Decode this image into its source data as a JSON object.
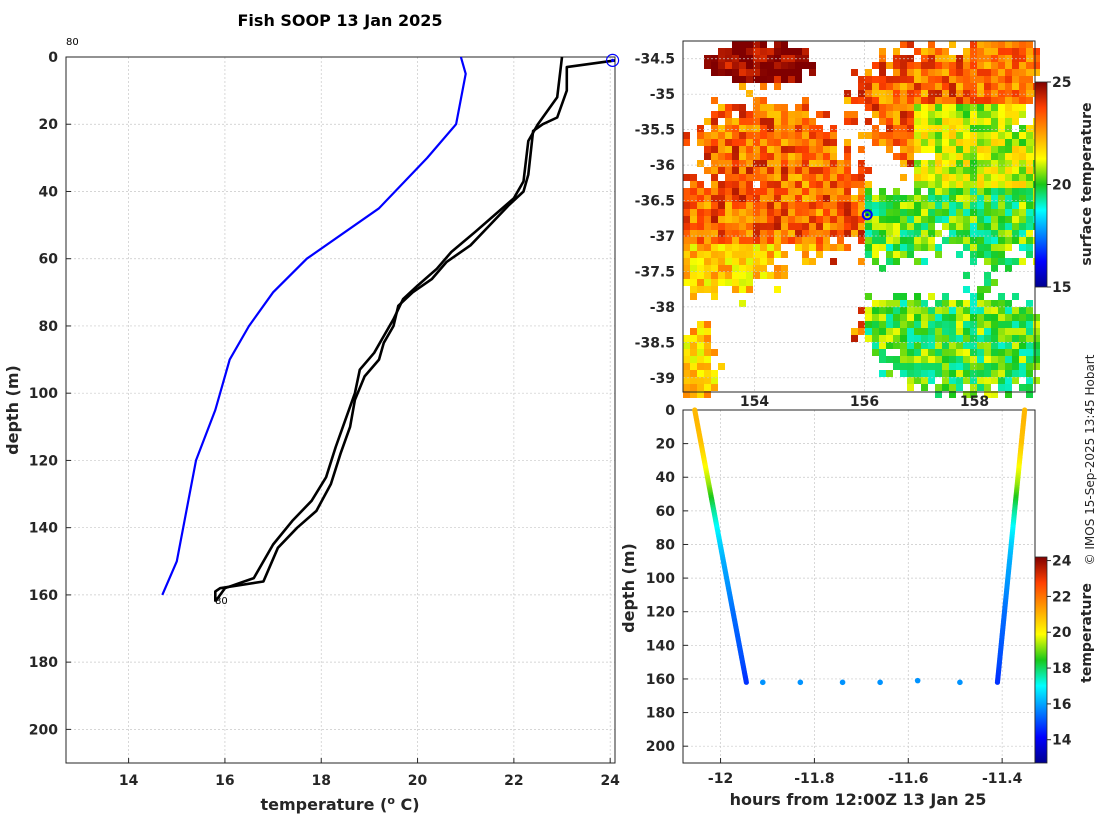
{
  "title": "Fish SOOP 13 Jan 2025",
  "credit": "© IMOS 15-Sep-2025 13:45 Hobart",
  "colors": {
    "obs": "#000000",
    "clim": "#0000ff",
    "marker": "#0000ff"
  },
  "chart_data": [
    {
      "type": "line",
      "panel": "profile",
      "xlabel": "temperature (o C)",
      "xlabel_main": "temperature (",
      "xlabel_sup": "o",
      "xlabel_end": " C)",
      "ylabel": "depth (m)",
      "xlim": [
        12.7,
        24.1
      ],
      "ylim": [
        210,
        0
      ],
      "xticks": [
        "14",
        "16",
        "18",
        "20",
        "22",
        "24"
      ],
      "yticks": [
        "0",
        "20",
        "40",
        "60",
        "80",
        "100",
        "120",
        "140",
        "160",
        "180",
        "200"
      ],
      "grid": true,
      "annotation_top": "80",
      "annotation_bottom": "80",
      "series": [
        {
          "role": "climatology",
          "color": "#0000ff",
          "x": [
            20.9,
            21.0,
            20.8,
            20.2,
            19.2,
            17.7,
            17.0,
            16.5,
            16.1,
            15.8,
            15.4,
            15.0,
            14.7
          ],
          "y": [
            0,
            5,
            20,
            30,
            45,
            60,
            70,
            80,
            90,
            105,
            120,
            150,
            160
          ]
        },
        {
          "role": "observed down",
          "color": "#000000",
          "x": [
            24.1,
            23.1,
            23.1,
            22.9,
            22.6,
            22.4,
            22.3,
            22.2,
            21.9,
            21.5,
            21.1,
            20.6,
            20.3,
            19.9,
            19.6,
            19.5,
            19.3,
            19.2,
            18.9,
            18.7,
            18.6,
            18.4,
            18.2,
            17.9,
            17.5,
            17.1,
            16.8,
            15.9,
            15.8,
            15.8
          ],
          "y": [
            1,
            3,
            10,
            18,
            20,
            22,
            35,
            40,
            44,
            50,
            56,
            61,
            66,
            70,
            74,
            80,
            85,
            90,
            95,
            102,
            110,
            118,
            127,
            135,
            140,
            146,
            156,
            158,
            159,
            162
          ]
        },
        {
          "role": "observed up",
          "color": "#000000",
          "x": [
            23.0,
            22.9,
            22.5,
            22.3,
            22.2,
            22.0,
            21.6,
            21.2,
            20.7,
            20.4,
            20.0,
            19.7,
            19.5,
            19.3,
            19.1,
            18.8,
            18.7,
            18.5,
            18.3,
            18.1,
            17.8,
            17.4,
            17.0,
            16.6,
            16.0,
            15.8
          ],
          "y": [
            0,
            12,
            20,
            25,
            37,
            42,
            47,
            52,
            58,
            63,
            68,
            72,
            78,
            83,
            88,
            93,
            100,
            108,
            116,
            125,
            132,
            138,
            145,
            155,
            158,
            162
          ]
        }
      ],
      "marker": {
        "x": 24.05,
        "y": 1,
        "color": "#0000ff"
      }
    },
    {
      "type": "heatmap",
      "panel": "sst_map",
      "colorbar_label": "surface temperature",
      "colorbar_ticks": [
        "25",
        "20",
        "15"
      ],
      "crange": [
        15,
        25
      ],
      "xticks": [
        "154",
        "156",
        "158"
      ],
      "yticks": [
        "-34.5",
        "-35",
        "-35.5",
        "-36",
        "-36.5",
        "-37",
        "-37.5",
        "-38",
        "-38.5",
        "-39"
      ],
      "xlim": [
        152.7,
        159.1
      ],
      "ylim": [
        -34.25,
        -39.2
      ],
      "position_marker": {
        "lon": 156.05,
        "lat": -36.7
      }
    },
    {
      "type": "scatter",
      "panel": "depth_time",
      "xlabel": "hours from 12:00Z 13 Jan 25",
      "ylabel": "depth (m)",
      "colorbar_label": "temperature",
      "colorbar_ticks": [
        "24",
        "22",
        "20",
        "18",
        "16",
        "14"
      ],
      "crange": [
        12.7,
        24.2
      ],
      "xlim": [
        -12.08,
        -11.33
      ],
      "ylim": [
        210,
        0
      ],
      "xticks": [
        "-12",
        "-11.8",
        "-11.6",
        "-11.4"
      ],
      "yticks": [
        "0",
        "20",
        "40",
        "60",
        "80",
        "100",
        "120",
        "140",
        "160",
        "180",
        "200"
      ],
      "bottom_points": {
        "x": [
          -11.91,
          -11.83,
          -11.74,
          -11.66,
          -11.58,
          -11.49
        ],
        "y": [
          162,
          162,
          162,
          162,
          161,
          162
        ],
        "temp": [
          15.8,
          15.8,
          15.8,
          15.8,
          15.8,
          15.8
        ]
      }
    }
  ]
}
